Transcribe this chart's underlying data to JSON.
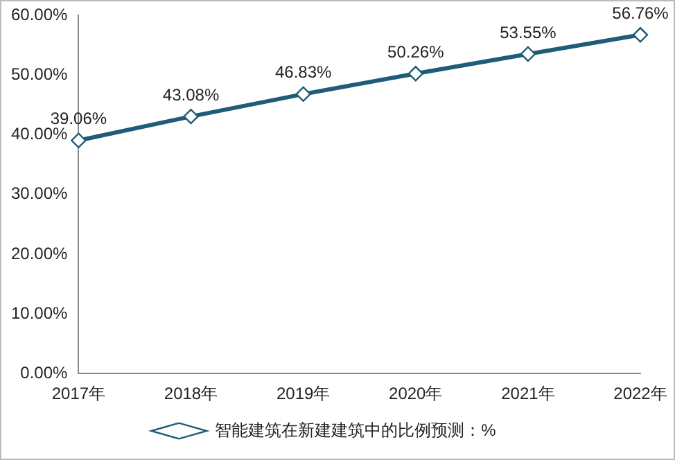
{
  "chart_data": {
    "type": "line",
    "categories": [
      "2017年",
      "2018年",
      "2019年",
      "2020年",
      "2021年",
      "2022年"
    ],
    "series": [
      {
        "name": "智能建筑在新建建筑中的比例预测：%",
        "color": "#1f5c78",
        "values": [
          39.06,
          43.08,
          46.83,
          50.26,
          53.55,
          56.76
        ],
        "value_labels": [
          "39.06%",
          "43.08%",
          "46.83%",
          "50.26%",
          "53.55%",
          "56.76%"
        ]
      }
    ],
    "ylim": [
      0,
      60
    ],
    "yticks": [
      {
        "value": 0,
        "label": "0.00%"
      },
      {
        "value": 10,
        "label": "10.00%"
      },
      {
        "value": 20,
        "label": "20.00%"
      },
      {
        "value": 30,
        "label": "30.00%"
      },
      {
        "value": 40,
        "label": "40.00%"
      },
      {
        "value": 50,
        "label": "50.00%"
      },
      {
        "value": 60,
        "label": "60.00%"
      }
    ],
    "grid": false,
    "legend": "bottom",
    "marker": "diamond",
    "line_style": "solid"
  }
}
